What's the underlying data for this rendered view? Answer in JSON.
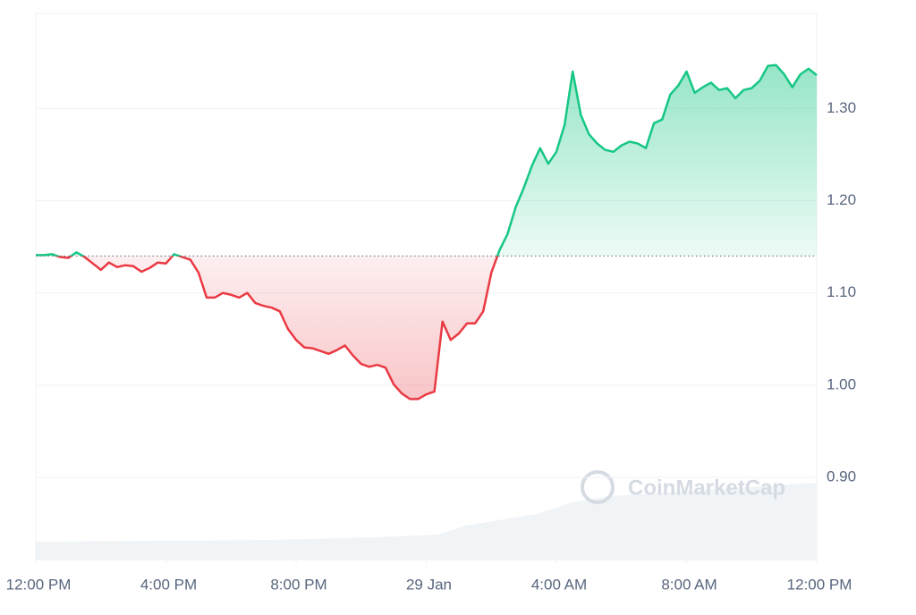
{
  "chart_data": {
    "type": "line",
    "x": [
      0,
      0.25,
      0.5,
      0.75,
      1,
      1.25,
      1.5,
      1.75,
      2,
      2.25,
      2.5,
      2.75,
      3,
      3.25,
      3.5,
      3.75,
      4,
      4.25,
      4.5,
      4.75,
      5,
      5.25,
      5.5,
      5.75,
      6,
      6.25,
      6.5,
      6.75,
      7,
      7.25,
      7.5,
      7.75,
      8,
      8.25,
      8.5,
      8.75,
      9,
      9.25,
      9.5,
      9.75,
      10,
      10.25,
      10.5,
      10.75,
      11,
      11.25,
      11.5,
      11.75,
      12,
      12.25,
      12.5,
      12.75,
      13,
      13.25,
      13.5,
      13.75,
      14,
      14.25,
      14.5,
      14.75,
      15,
      15.25,
      15.5,
      15.75,
      16,
      16.25,
      16.5,
      16.75,
      17,
      17.25,
      17.5,
      17.75,
      18,
      18.25,
      18.5,
      18.75,
      19,
      19.25,
      19.5,
      19.75,
      20,
      20.25,
      20.5,
      20.75,
      21,
      21.25,
      21.5,
      21.75,
      22,
      22.25,
      22.5,
      22.75,
      23,
      23.25,
      23.5,
      23.75,
      24
    ],
    "values": [
      1.141,
      1.141,
      1.142,
      1.139,
      1.138,
      1.144,
      1.139,
      1.132,
      1.125,
      1.133,
      1.128,
      1.13,
      1.129,
      1.123,
      1.127,
      1.133,
      1.132,
      1.142,
      1.139,
      1.136,
      1.122,
      1.095,
      1.095,
      1.1,
      1.098,
      1.095,
      1.1,
      1.089,
      1.086,
      1.084,
      1.08,
      1.061,
      1.049,
      1.041,
      1.04,
      1.037,
      1.034,
      1.038,
      1.043,
      1.032,
      1.023,
      1.02,
      1.022,
      1.019,
      1.001,
      0.991,
      0.985,
      0.985,
      0.99,
      0.993,
      1.069,
      1.049,
      1.056,
      1.067,
      1.067,
      1.08,
      1.122,
      1.146,
      1.164,
      1.193,
      1.214,
      1.238,
      1.257,
      1.24,
      1.253,
      1.282,
      1.34,
      1.293,
      1.272,
      1.262,
      1.255,
      1.253,
      1.26,
      1.264,
      1.262,
      1.257,
      1.284,
      1.288,
      1.315,
      1.325,
      1.34,
      1.317,
      1.323,
      1.328,
      1.32,
      1.322,
      1.311,
      1.32,
      1.322,
      1.33,
      1.346,
      1.347,
      1.337,
      1.323,
      1.337,
      1.343,
      1.336
    ],
    "baseline": 1.14,
    "colors": {
      "up": "#16c784",
      "down": "#ea3943"
    },
    "xlim": [
      0,
      24
    ],
    "xticks": [
      {
        "value": 0,
        "label": "12:00 PM"
      },
      {
        "value": 4,
        "label": "4:00 PM"
      },
      {
        "value": 8,
        "label": "8:00 PM"
      },
      {
        "value": 12,
        "label": "29 Jan"
      },
      {
        "value": 16,
        "label": "4:00 AM"
      },
      {
        "value": 20,
        "label": "8:00 AM"
      },
      {
        "value": 24,
        "label": "12:00 PM"
      }
    ],
    "ylim": [
      0.81,
      1.403
    ],
    "yticks": [
      {
        "value": 0.9,
        "label": "0.90"
      },
      {
        "value": 1.0,
        "label": "1.00"
      },
      {
        "value": 1.1,
        "label": "1.10"
      },
      {
        "value": 1.2,
        "label": "1.20"
      },
      {
        "value": 1.3,
        "label": "1.30"
      }
    ],
    "grid": true,
    "watermark": "CoinMarketCap"
  }
}
